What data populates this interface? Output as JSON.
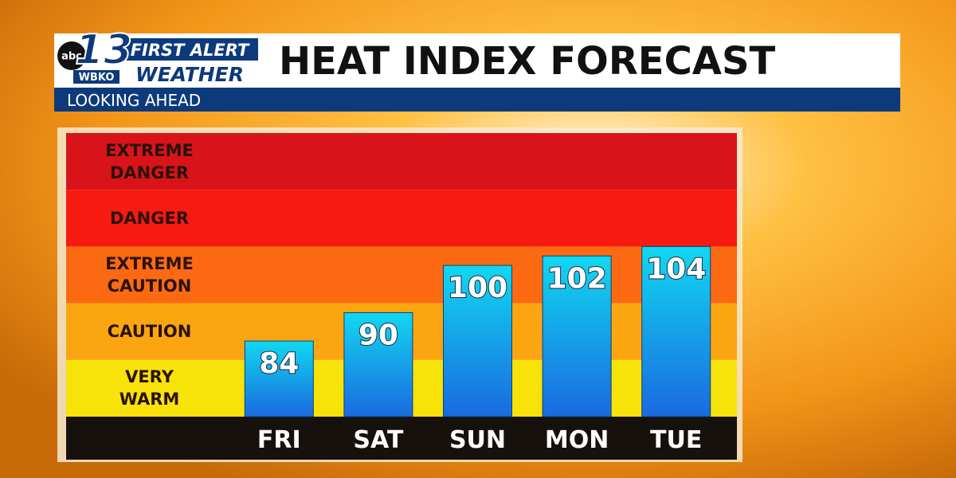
{
  "header": {
    "network": "abc",
    "channel": "13",
    "station": "WBKO",
    "brand_line1": "FIRST ALERT",
    "brand_line2": "WEATHER",
    "subtitle": "LOOKING AHEAD"
  },
  "chart_data": {
    "type": "bar",
    "title": "HEAT INDEX FORECAST",
    "categories": [
      "FRI",
      "SAT",
      "SUN",
      "MON",
      "TUE"
    ],
    "values": [
      84,
      90,
      100,
      102,
      104
    ],
    "ylim": [
      68,
      128
    ],
    "bands": [
      {
        "label": "VERY WARM",
        "from": 68,
        "to": 80,
        "color": "#f7e20a"
      },
      {
        "label": "CAUTION",
        "from": 80,
        "to": 92,
        "color": "#fba610"
      },
      {
        "label": "EXTREME CAUTION",
        "from": 92,
        "to": 104,
        "color": "#fb6a12"
      },
      {
        "label": "DANGER",
        "from": 104,
        "to": 116,
        "color": "#f71a10"
      },
      {
        "label": "EXTREME DANGER",
        "from": 116,
        "to": 128,
        "color": "#d8141a"
      }
    ],
    "bar_colors": [
      "#11d8f0",
      "#1a6ae0"
    ]
  }
}
